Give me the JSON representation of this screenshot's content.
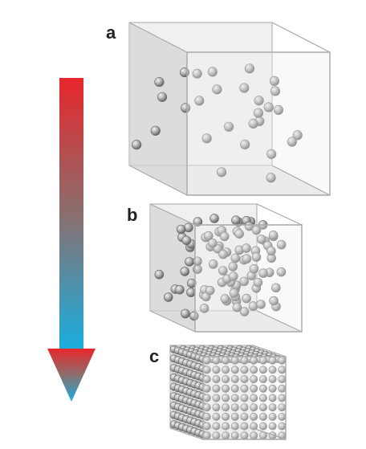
{
  "panels": [
    {
      "label": "a",
      "state": "gas",
      "particle_count": 28
    },
    {
      "label": "b",
      "state": "liquid",
      "particle_count": 90
    },
    {
      "label": "c",
      "state": "solid",
      "lattice": [
        9,
        9,
        9
      ]
    }
  ],
  "arrow": {
    "top_color": "#e8262b",
    "bottom_color": "#19aee0"
  },
  "colors": {
    "cube_fill": "#e4e4e4",
    "cube_edge": "#a9a9a9",
    "sphere_dark": "#555555",
    "sphere_light": "#f2f2f2"
  }
}
